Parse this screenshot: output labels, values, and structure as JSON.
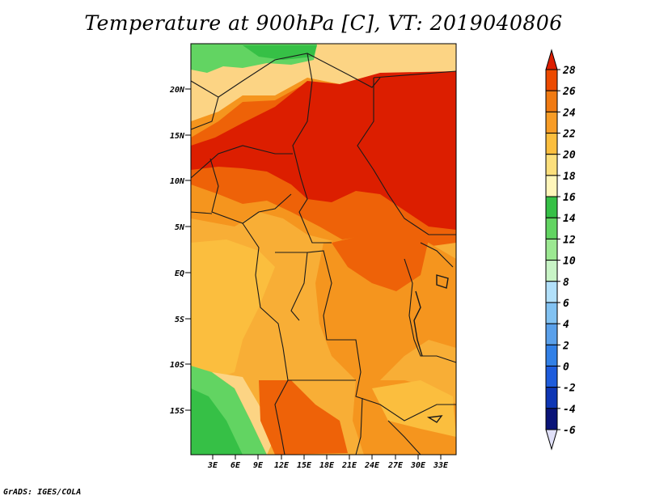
{
  "title": "Temperature at 900hPa [C], VT: 2019040806",
  "footer": "GrADS: IGES/COLA",
  "map": {
    "region": "Central Africa",
    "lat_labels": [
      "20N",
      "15N",
      "10N",
      "5N",
      "EQ",
      "5S",
      "10S",
      "15S"
    ],
    "lon_labels": [
      "3E",
      "6E",
      "9E",
      "12E",
      "15E",
      "18E",
      "21E",
      "24E",
      "27E",
      "30E",
      "33E"
    ]
  },
  "colorbar": {
    "labels": [
      "28",
      "26",
      "24",
      "22",
      "20",
      "18",
      "16",
      "14",
      "12",
      "10",
      "8",
      "6",
      "4",
      "2",
      "0",
      "-2",
      "-4",
      "-6"
    ],
    "colors": [
      "#dc1e00",
      "#ec4a00",
      "#f07a12",
      "#f79c26",
      "#fbbe3e",
      "#fcdf7c",
      "#fff6ba",
      "#36c046",
      "#62d462",
      "#9ce892",
      "#c8f4c6",
      "#b2e0fa",
      "#82c2f2",
      "#5aa0ea",
      "#3280e6",
      "#1e5cdc",
      "#0e36b4",
      "#0a1478",
      "#e0e0f8"
    ]
  }
}
